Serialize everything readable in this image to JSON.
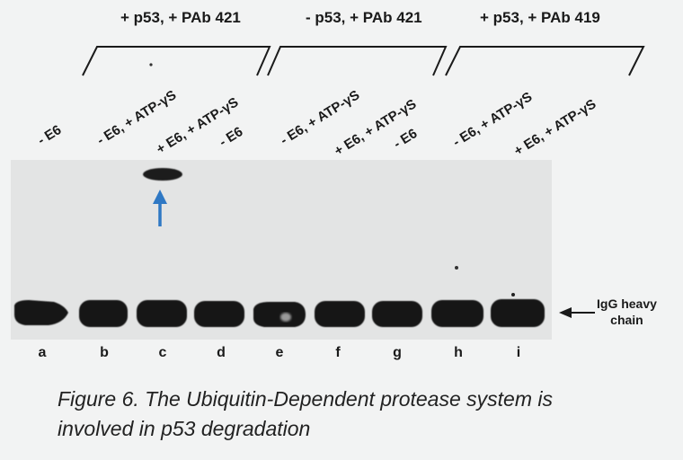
{
  "groups": [
    {
      "label": "+ p53, + PAb 421"
    },
    {
      "label": "- p53, + PAb 421"
    },
    {
      "label": "+ p53, + PAb 419"
    }
  ],
  "lanes": [
    {
      "letter": "a",
      "condition": "- E6"
    },
    {
      "letter": "b",
      "condition": "- E6, + ATP-γS"
    },
    {
      "letter": "c",
      "condition": "+ E6, + ATP-γS"
    },
    {
      "letter": "d",
      "condition": "- E6"
    },
    {
      "letter": "e",
      "condition": "- E6, + ATP-γS"
    },
    {
      "letter": "f",
      "condition": "+ E6, + ATP-γS"
    },
    {
      "letter": "g",
      "condition": "- E6"
    },
    {
      "letter": "h",
      "condition": "- E6, + ATP-γS"
    },
    {
      "letter": "i",
      "condition": "+ E6, + ATP-γS"
    }
  ],
  "band_label": {
    "line1": "IgG heavy",
    "line2": "chain"
  },
  "caption": "Figure 6. The Ubiquitin-Dependent protease system is involved in p53 degradation",
  "colors": {
    "arrow": "#2f78c4",
    "gel": "#e4e5e5",
    "band": "#161616"
  }
}
